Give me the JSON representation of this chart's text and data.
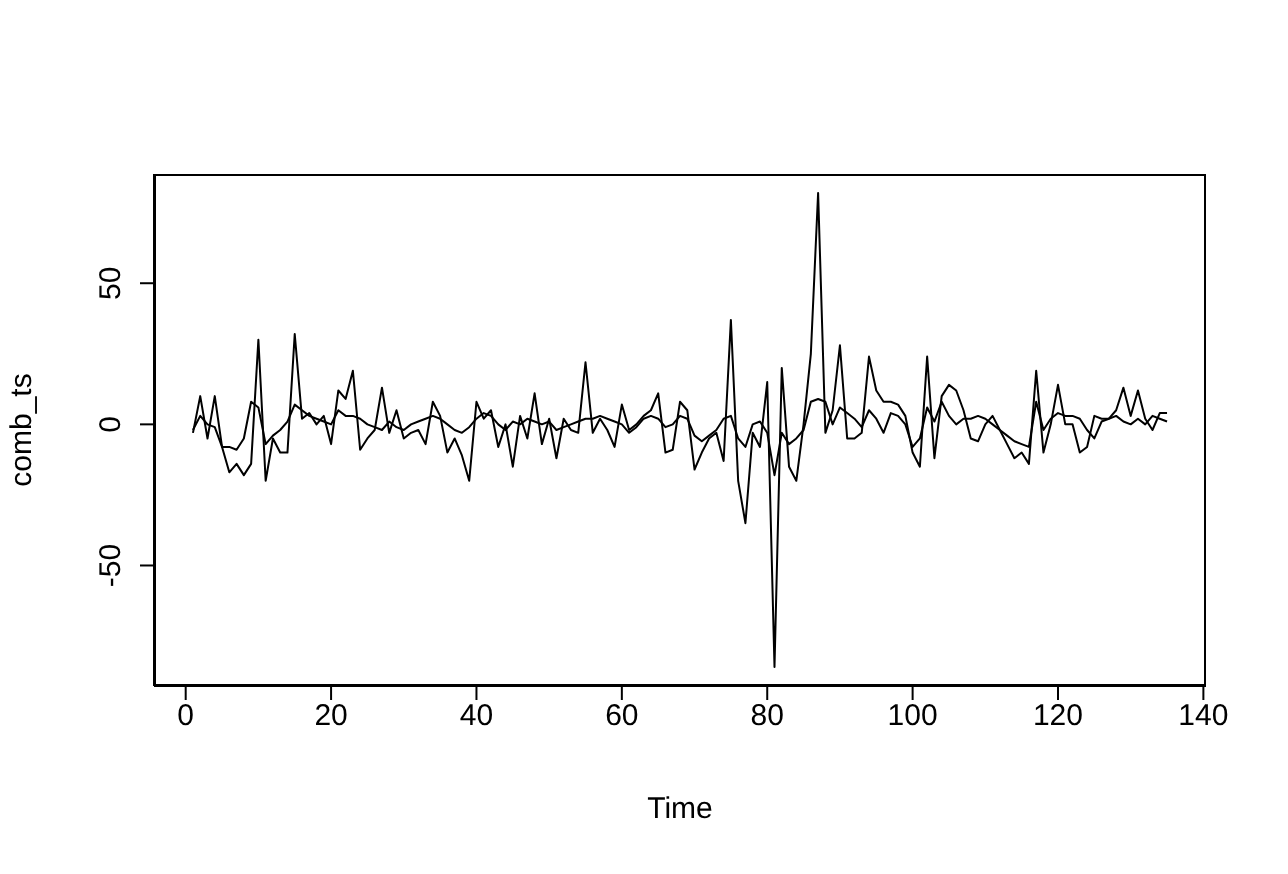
{
  "chart_data": {
    "type": "line",
    "xlabel": "Time",
    "ylabel": "comb_ts",
    "x": [
      1,
      2,
      3,
      4,
      5,
      6,
      7,
      8,
      9,
      10,
      11,
      12,
      13,
      14,
      15,
      16,
      17,
      18,
      19,
      20,
      21,
      22,
      23,
      24,
      25,
      26,
      27,
      28,
      29,
      30,
      31,
      32,
      33,
      34,
      35,
      36,
      37,
      38,
      39,
      40,
      41,
      42,
      43,
      44,
      45,
      46,
      47,
      48,
      49,
      50,
      51,
      52,
      53,
      54,
      55,
      56,
      57,
      58,
      59,
      60,
      61,
      62,
      63,
      64,
      65,
      66,
      67,
      68,
      69,
      70,
      71,
      72,
      73,
      74,
      75,
      76,
      77,
      78,
      79,
      80,
      81,
      82,
      83,
      84,
      85,
      86,
      87,
      88,
      89,
      90,
      91,
      92,
      93,
      94,
      95,
      96,
      97,
      98,
      99,
      100,
      101,
      102,
      103,
      104,
      105,
      106,
      107,
      108,
      109,
      110,
      111,
      112,
      113,
      114,
      115,
      116,
      117,
      118,
      119,
      120,
      121,
      122,
      123,
      124,
      125,
      126,
      127,
      128,
      129,
      130,
      131,
      132,
      133,
      134,
      135
    ],
    "series": [
      {
        "color": "#000000",
        "values": [
          -3,
          10,
          -5,
          10,
          -8,
          -17,
          -14,
          -18,
          -14,
          30,
          -20,
          -5,
          -10,
          -10,
          32,
          2,
          4,
          0,
          3,
          -7,
          12,
          9,
          19,
          -9,
          -5,
          -2,
          13,
          -3,
          5,
          -5,
          -3,
          -2,
          -7,
          8,
          3,
          -10,
          -5,
          -11,
          -20,
          8,
          2,
          5,
          -8,
          0,
          -15,
          3,
          -5,
          11,
          -7,
          2,
          -12,
          2,
          -2,
          -3,
          22,
          -3,
          2,
          -2,
          -8,
          7,
          -2,
          0,
          3,
          5,
          11,
          -10,
          -9,
          8,
          5,
          -16,
          -10,
          -5,
          -3,
          -13,
          37,
          -20,
          -35,
          -3,
          -8,
          15,
          -86,
          20,
          -15,
          -20,
          0,
          25,
          82,
          -3,
          5,
          28,
          -5,
          -5,
          -3,
          24,
          12,
          8,
          8,
          7,
          3,
          -10,
          -15,
          24,
          -12,
          10,
          14,
          12,
          5,
          -5,
          -6,
          0,
          3,
          -2,
          -7,
          -12,
          -10,
          -14,
          19,
          -10,
          0,
          14,
          0,
          0,
          -10,
          -8,
          3,
          2,
          2,
          5,
          13,
          3,
          12,
          2,
          -2,
          4,
          4
        ]
      },
      {
        "color": "#000000",
        "values": [
          -2,
          3,
          0,
          -1,
          -8,
          -8,
          -9,
          -5,
          8,
          6,
          -7,
          -4,
          -2,
          1,
          7,
          5,
          3,
          2,
          1,
          0,
          5,
          3,
          3,
          2,
          0,
          -1,
          -2,
          1,
          -1,
          -2,
          0,
          1,
          2,
          3,
          2,
          0,
          -2,
          -3,
          -1,
          2,
          4,
          3,
          0,
          -2,
          1,
          0,
          2,
          1,
          0,
          1,
          -2,
          -1,
          0,
          1,
          2,
          2,
          3,
          2,
          1,
          0,
          -3,
          -1,
          2,
          3,
          2,
          -1,
          0,
          3,
          2,
          -4,
          -6,
          -4,
          -2,
          2,
          3,
          -5,
          -8,
          0,
          1,
          -3,
          -18,
          -3,
          -7,
          -5,
          -2,
          8,
          9,
          8,
          0,
          6,
          4,
          2,
          -1,
          5,
          2,
          -3,
          4,
          3,
          0,
          -8,
          -5,
          6,
          1,
          8,
          3,
          0,
          2,
          2,
          3,
          2,
          0,
          -2,
          -4,
          -6,
          -7,
          -8,
          8,
          -2,
          2,
          4,
          3,
          3,
          2,
          -2,
          -5,
          1,
          2,
          3,
          1,
          0,
          2,
          0,
          3,
          2,
          1
        ]
      }
    ],
    "xlim": [
      -4.36,
      140.36
    ],
    "xticks": [
      0,
      20,
      40,
      60,
      80,
      100,
      120,
      140
    ],
    "ylim": [
      -92.7,
      88.7
    ],
    "yticks": [
      -50,
      0,
      50
    ],
    "grid": false,
    "marker": "none",
    "line_style": "solid"
  }
}
